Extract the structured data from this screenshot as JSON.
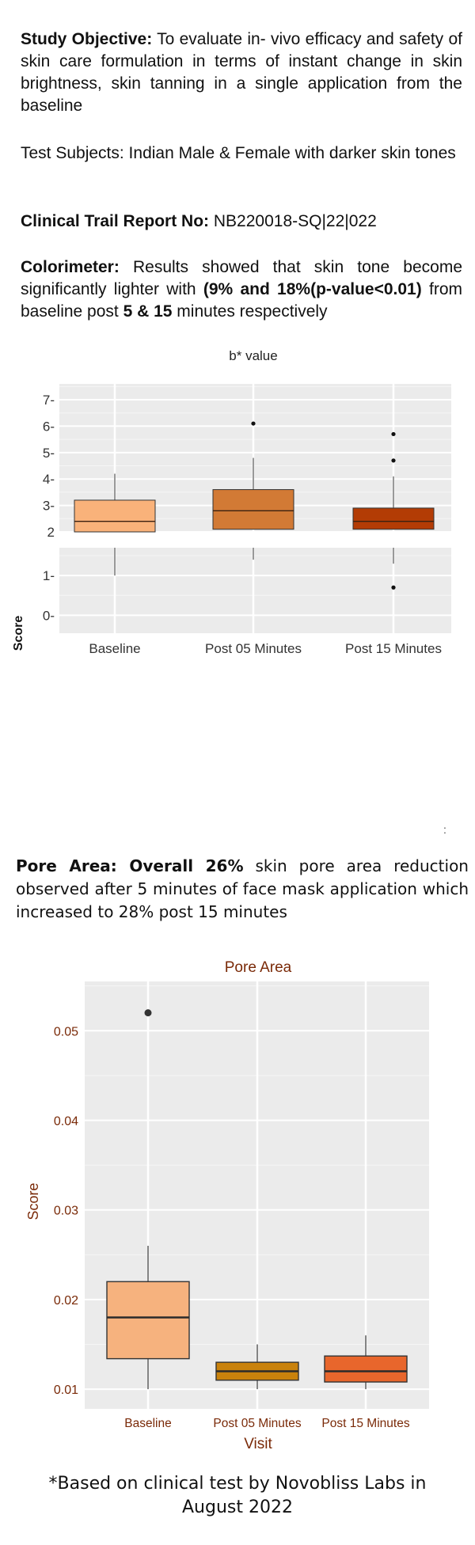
{
  "intro": {
    "objective_label": "Study Objective:",
    "objective_text": " To evaluate in- vivo efficacy and safety of skin care formulation in terms of instant change in skin brightness, skin tanning in a single application from the baseline",
    "subjects_text": "Test Subjects: Indian Male & Female with darker skin tones",
    "report_label": "Clinical Trail Report No:",
    "report_value": " NB220018-SQ|22|022",
    "colorimeter_label": "Colorimeter:",
    "colorimeter_text_1": " Results showed that skin tone become significantly lighter with ",
    "colorimeter_bold_1": "(9% and 18%(p-value<0.01)",
    "colorimeter_text_2": " from baseline post ",
    "colorimeter_bold_2": "5 &  15",
    "colorimeter_text_3": " minutes respectively"
  },
  "pore": {
    "label": "Pore Area: Overall 26%",
    "text": " skin pore area reduction observed after 5 minutes of face mask application which increased to 28% post 15 minutes"
  },
  "stray_mark": ":",
  "footnote": {
    "line1": "*Based on clinical test by Novobliss Labs in",
    "line2": "August 2022"
  },
  "chart_data": [
    {
      "type": "boxplot",
      "title": "b* value",
      "xlabel": "",
      "ylabel": "Score",
      "categories": [
        "Baseline",
        "Post 05 Minutes",
        "Post 15 Minutes"
      ],
      "y_ticks": [
        "0-",
        "1-",
        "2",
        "3-",
        "4-",
        "5-",
        "6-",
        "7-"
      ],
      "broken_axis": true,
      "grid": true,
      "colors": [
        "#f9b27a",
        "#d27a35",
        "#b33c05"
      ],
      "boxes": [
        {
          "name": "Baseline",
          "whisker_low": 1.0,
          "q1": 1.6,
          "median": 2.4,
          "q3": 3.2,
          "whisker_high": 4.2,
          "outliers": []
        },
        {
          "name": "Post 05 Minutes",
          "whisker_low": 1.4,
          "q1": 2.1,
          "median": 2.8,
          "q3": 3.6,
          "whisker_high": 4.8,
          "outliers": [
            6.1
          ]
        },
        {
          "name": "Post 15 Minutes",
          "whisker_low": 1.3,
          "q1": 2.1,
          "median": 2.4,
          "q3": 2.9,
          "whisker_high": 4.1,
          "outliers": [
            5.7,
            4.7,
            0.7
          ]
        }
      ]
    },
    {
      "type": "boxplot",
      "title": "Pore Area",
      "xlabel": "Visit",
      "ylabel": "Score",
      "categories": [
        "Baseline",
        "Post 05 Minutes",
        "Post 15 Minutes"
      ],
      "y_ticks": [
        "0.01",
        "0.02",
        "0.03",
        "0.04",
        "0.05"
      ],
      "ylim": [
        0.0078,
        0.0555
      ],
      "grid": true,
      "colors": [
        "#f6b27e",
        "#c9820c",
        "#e8662c"
      ],
      "text_color": "#7a2a08",
      "boxes": [
        {
          "name": "Baseline",
          "whisker_low": 0.01,
          "q1": 0.0134,
          "median": 0.018,
          "q3": 0.022,
          "whisker_high": 0.026,
          "outliers": [
            0.052
          ]
        },
        {
          "name": "Post 05 Minutes",
          "whisker_low": 0.01,
          "q1": 0.011,
          "median": 0.012,
          "q3": 0.013,
          "whisker_high": 0.015,
          "outliers": []
        },
        {
          "name": "Post 15 Minutes",
          "whisker_low": 0.01,
          "q1": 0.0108,
          "median": 0.012,
          "q3": 0.0137,
          "whisker_high": 0.016,
          "outliers": []
        }
      ]
    }
  ]
}
